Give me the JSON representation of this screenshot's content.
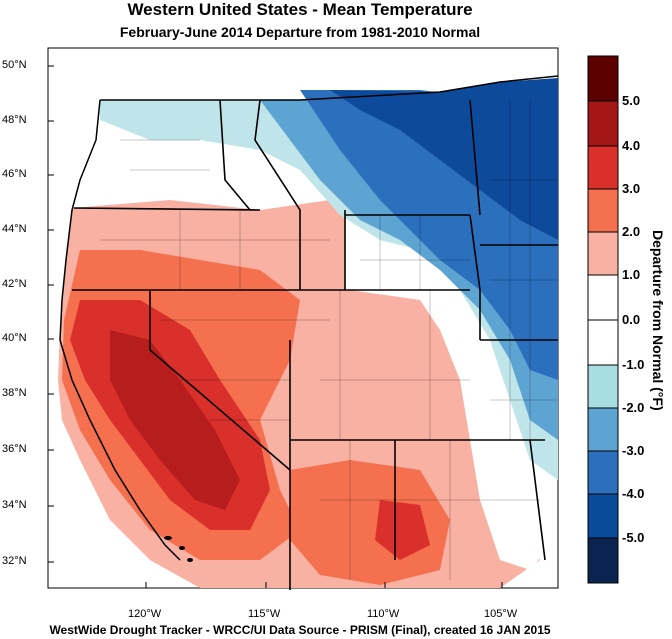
{
  "header": {
    "title": "Western United States - Mean Temperature",
    "subtitle": "February-June 2014  Departure from 1981-2010 Normal"
  },
  "footer": {
    "credit": "WestWide Drought Tracker - WRCC/UI  Data Source - PRISM (Final), created 16 JAN 2015"
  },
  "axes": {
    "latitude_labels": [
      "50°N",
      "48°N",
      "46°N",
      "44°N",
      "42°N",
      "40°N",
      "38°N",
      "36°N",
      "34°N",
      "32°N"
    ],
    "longitude_labels": [
      "120°W",
      "115°W",
      "110°W",
      "105°W"
    ]
  },
  "colorbar": {
    "title": "Departure from Normal (°F)",
    "tick_labels": [
      "5.0",
      "4.0",
      "3.0",
      "2.0",
      "1.0",
      "0.0",
      "-1.0",
      "-2.0",
      "-3.0",
      "-4.0",
      "-5.0"
    ],
    "colors": [
      "#5c0000",
      "#a51616",
      "#d9302b",
      "#f4704f",
      "#f8b1a2",
      "#ffffff",
      "#ffffff",
      "#a8dde3",
      "#5ea4d2",
      "#2b6fbd",
      "#0a4a9a",
      "#0a2350"
    ]
  },
  "map_colors": {
    "warm_strong": "#cc1f1f",
    "warm_moderate": "#e8462f",
    "warm_light": "#f4917f",
    "warm_faint": "#f8c3b8",
    "neutral": "#ffffff",
    "cool_faint": "#bfe4ea",
    "cool_light": "#6fb0d8",
    "cool_moderate": "#2d71bd",
    "cool_strong": "#0e4a9b",
    "boundary": "#000000"
  }
}
